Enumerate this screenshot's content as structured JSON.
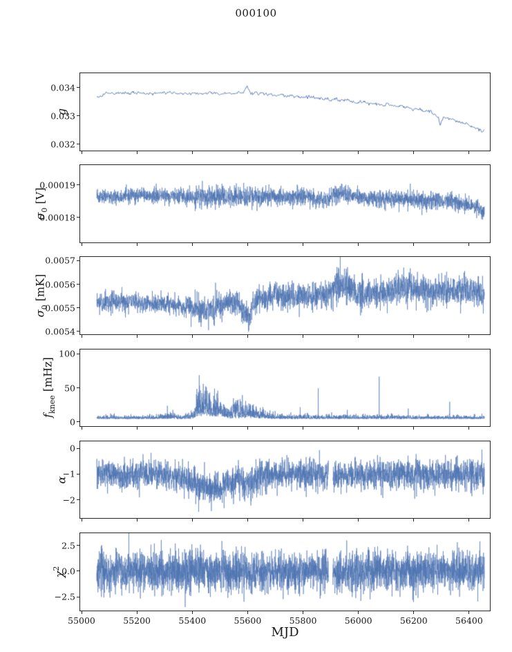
{
  "chart_data": {
    "type": "line",
    "title": "000100",
    "xlabel": "MJD",
    "line_color": "#4c72b0",
    "xlim": [
      54995,
      56475
    ],
    "x_range": [
      55055,
      56455
    ],
    "xticks": [
      55000,
      55200,
      55400,
      55600,
      55800,
      56000,
      56200,
      56400
    ],
    "xtick_labels": [
      "55000",
      "55200",
      "55400",
      "55600",
      "55800",
      "56000",
      "56200",
      "56400"
    ],
    "grid": false,
    "legend": null,
    "panels": [
      {
        "name": "gain",
        "ylabel": {
          "base": "g",
          "sub": "",
          "sup": "",
          "unit": ""
        },
        "ylim": [
          0.0318,
          0.0345
        ],
        "yticks": [
          0.032,
          0.033,
          0.034
        ],
        "ytick_labels": [
          "0.032",
          "0.033",
          "0.034"
        ],
        "n": 720,
        "seed": 17,
        "mode": "sym",
        "smooth": 0.55,
        "line_width": 0.9,
        "trend": [
          [
            55055,
            0.03365
          ],
          [
            55085,
            0.03377
          ],
          [
            55150,
            0.03381
          ],
          [
            55250,
            0.03379
          ],
          [
            55330,
            0.03381
          ],
          [
            55400,
            0.03377
          ],
          [
            55470,
            0.0338
          ],
          [
            55540,
            0.03377
          ],
          [
            55585,
            0.0338
          ],
          [
            55598,
            0.03406
          ],
          [
            55612,
            0.03382
          ],
          [
            55650,
            0.03377
          ],
          [
            55720,
            0.03371
          ],
          [
            55790,
            0.03367
          ],
          [
            55860,
            0.03362
          ],
          [
            55930,
            0.03356
          ],
          [
            56000,
            0.0335
          ],
          [
            56070,
            0.03342
          ],
          [
            56140,
            0.03334
          ],
          [
            56210,
            0.03324
          ],
          [
            56260,
            0.03312
          ],
          [
            56288,
            0.033
          ],
          [
            56296,
            0.0327
          ],
          [
            56306,
            0.03296
          ],
          [
            56340,
            0.03284
          ],
          [
            56380,
            0.03272
          ],
          [
            56420,
            0.03258
          ],
          [
            56455,
            0.03248
          ]
        ],
        "noise": 3e-05,
        "spikes": [],
        "gaps": []
      },
      {
        "name": "sigma0-volts",
        "ylabel": {
          "base": "σ",
          "sub": "0",
          "sup": "",
          "unit": " [V]"
        },
        "ylim": [
          0.0001725,
          0.000196
        ],
        "yticks": [
          0.00018,
          0.00019
        ],
        "ytick_labels": [
          "0.00018",
          "0.00019"
        ],
        "n": 3000,
        "seed": 23,
        "mode": "sym",
        "smooth": 0,
        "line_width": 0.6,
        "trend": [
          [
            55055,
            0.0001862
          ],
          [
            55150,
            0.0001864
          ],
          [
            55250,
            0.0001866
          ],
          [
            55350,
            0.0001864
          ],
          [
            55405,
            0.0001858
          ],
          [
            55430,
            0.0001862
          ],
          [
            55550,
            0.0001863
          ],
          [
            55650,
            0.0001862
          ],
          [
            55750,
            0.0001861
          ],
          [
            55860,
            0.0001857
          ],
          [
            55895,
            0.0001856
          ],
          [
            55925,
            0.0001878
          ],
          [
            55945,
            0.0001868
          ],
          [
            55980,
            0.0001862
          ],
          [
            56050,
            0.0001858
          ],
          [
            56150,
            0.0001855
          ],
          [
            56250,
            0.0001852
          ],
          [
            56330,
            0.0001848
          ],
          [
            56400,
            0.0001838
          ],
          [
            56440,
            0.0001824
          ],
          [
            56455,
            0.0001817
          ]
        ],
        "noise": [
          [
            55055,
            1.1e-06
          ],
          [
            55350,
            1.1e-06
          ],
          [
            55420,
            1.5e-06
          ],
          [
            55900,
            1.3e-06
          ],
          [
            55930,
            1.6e-06
          ],
          [
            56000,
            1.3e-06
          ],
          [
            56455,
            1.3e-06
          ]
        ],
        "spikes": [],
        "gaps": []
      },
      {
        "name": "sigma0-mk",
        "ylabel": {
          "base": "σ",
          "sub": "0",
          "sup": "",
          "unit": " [mK]"
        },
        "ylim": [
          0.00539,
          0.005715
        ],
        "yticks": [
          0.0054,
          0.0055,
          0.0056,
          0.0057
        ],
        "ytick_labels": [
          "0.0054",
          "0.0055",
          "0.0056",
          "0.0057"
        ],
        "n": 3000,
        "seed": 31,
        "mode": "sym",
        "smooth": 0,
        "line_width": 0.6,
        "trend": [
          [
            55055,
            0.00552
          ],
          [
            55150,
            0.005525
          ],
          [
            55250,
            0.00552
          ],
          [
            55320,
            0.005515
          ],
          [
            55380,
            0.005505
          ],
          [
            55430,
            0.005492
          ],
          [
            55470,
            0.00549
          ],
          [
            55510,
            0.005515
          ],
          [
            55545,
            0.005522
          ],
          [
            55570,
            0.005515
          ],
          [
            55592,
            0.00547
          ],
          [
            55605,
            0.005445
          ],
          [
            55618,
            0.00552
          ],
          [
            55680,
            0.00555
          ],
          [
            55750,
            0.005552
          ],
          [
            55830,
            0.00555
          ],
          [
            55895,
            0.005558
          ],
          [
            55925,
            0.005595
          ],
          [
            55960,
            0.005588
          ],
          [
            56000,
            0.00556
          ],
          [
            56060,
            0.005562
          ],
          [
            56130,
            0.005568
          ],
          [
            56180,
            0.005588
          ],
          [
            56220,
            0.005575
          ],
          [
            56280,
            0.005565
          ],
          [
            56330,
            0.005575
          ],
          [
            56380,
            0.00557
          ],
          [
            56420,
            0.005572
          ],
          [
            56455,
            0.005572
          ]
        ],
        "noise": [
          [
            55055,
            2e-05
          ],
          [
            55360,
            2e-05
          ],
          [
            55420,
            3e-05
          ],
          [
            55480,
            2.8e-05
          ],
          [
            55530,
            2.2e-05
          ],
          [
            55590,
            3e-05
          ],
          [
            55620,
            2.5e-05
          ],
          [
            55680,
            2.8e-05
          ],
          [
            55900,
            2.8e-05
          ],
          [
            55925,
            4e-05
          ],
          [
            55990,
            3.2e-05
          ],
          [
            56455,
            3.2e-05
          ]
        ],
        "spikes": [],
        "gaps": []
      },
      {
        "name": "fknee",
        "ylabel": {
          "base": "f",
          "sub": "knee",
          "sup": "",
          "unit": " [mHz]"
        },
        "ylim": [
          -6,
          107
        ],
        "yticks": [
          0,
          50,
          100
        ],
        "ytick_labels": [
          "0",
          "50",
          "100"
        ],
        "n": 3200,
        "seed": 41,
        "mode": "pos",
        "smooth": 0,
        "line_width": 0.6,
        "trend": [
          [
            55055,
            4.5
          ],
          [
            55400,
            4.5
          ],
          [
            55420,
            9
          ],
          [
            55500,
            8
          ],
          [
            55540,
            5
          ],
          [
            55600,
            6
          ],
          [
            55650,
            5
          ],
          [
            55720,
            4.5
          ],
          [
            56455,
            4.5
          ]
        ],
        "noise": [
          [
            55055,
            2.5
          ],
          [
            55270,
            2.5
          ],
          [
            55290,
            4
          ],
          [
            55320,
            5
          ],
          [
            55350,
            3.5
          ],
          [
            55390,
            4
          ],
          [
            55408,
            6
          ],
          [
            55418,
            22
          ],
          [
            55450,
            20
          ],
          [
            55480,
            16
          ],
          [
            55510,
            10
          ],
          [
            55535,
            6
          ],
          [
            55550,
            10
          ],
          [
            55565,
            14
          ],
          [
            55590,
            12
          ],
          [
            55615,
            10
          ],
          [
            55640,
            7
          ],
          [
            55670,
            5
          ],
          [
            55720,
            3.5
          ],
          [
            55850,
            3
          ],
          [
            56455,
            2.5
          ]
        ],
        "spikes": [
          [
            55310,
            24
          ],
          [
            55330,
            18
          ],
          [
            55790,
            22
          ],
          [
            55855,
            50
          ],
          [
            55960,
            18
          ],
          [
            56075,
            67
          ],
          [
            56180,
            20
          ],
          [
            56330,
            30
          ]
        ],
        "gaps": []
      },
      {
        "name": "alpha",
        "ylabel": {
          "base": "α",
          "sub": "",
          "sup": "",
          "unit": ""
        },
        "ylim": [
          -2.7,
          0.28
        ],
        "yticks": [
          -2,
          -1,
          0
        ],
        "ytick_labels": [
          "−2",
          "−1",
          "0"
        ],
        "n": 3200,
        "seed": 53,
        "mode": "sym",
        "smooth": 0,
        "line_width": 0.6,
        "trend": [
          [
            55055,
            -1.0
          ],
          [
            55320,
            -1.02
          ],
          [
            55360,
            -1.2
          ],
          [
            55400,
            -1.35
          ],
          [
            55440,
            -1.5
          ],
          [
            55500,
            -1.5
          ],
          [
            55540,
            -1.35
          ],
          [
            55560,
            -1.1
          ],
          [
            55580,
            -1.25
          ],
          [
            55610,
            -1.3
          ],
          [
            55640,
            -1.1
          ],
          [
            55670,
            -1.02
          ],
          [
            56455,
            -1.0
          ]
        ],
        "noise": [
          [
            55055,
            0.26
          ],
          [
            55300,
            0.26
          ],
          [
            55380,
            0.3
          ],
          [
            55620,
            0.3
          ],
          [
            55680,
            0.28
          ],
          [
            56455,
            0.28
          ]
        ],
        "spikes": [],
        "gaps": [
          [
            55892,
            55908
          ]
        ]
      },
      {
        "name": "chi2",
        "ylabel": {
          "base": "χ",
          "sub": "",
          "sup": "2",
          "unit": ""
        },
        "ylim": [
          -3.75,
          3.68
        ],
        "yticks": [
          -2.5,
          0.0,
          2.5
        ],
        "ytick_labels": [
          "−2.5",
          "0.0",
          "2.5"
        ],
        "n": 3600,
        "seed": 67,
        "mode": "sym",
        "smooth": 0,
        "line_width": 0.6,
        "trend": [
          [
            55055,
            0
          ],
          [
            56455,
            0
          ]
        ],
        "noise": 0.95,
        "spikes": [],
        "gaps": [
          [
            55892,
            55908
          ]
        ]
      }
    ]
  }
}
